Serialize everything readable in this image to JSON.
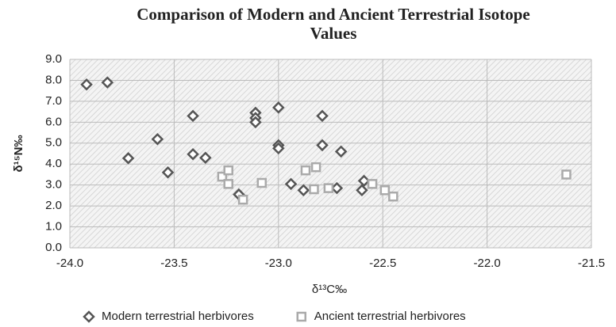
{
  "chart_data": {
    "type": "scatter",
    "title": "Comparison of Modern and Ancient Terrestrial Isotope Values",
    "x_label": "δ¹³C‰",
    "y_label": "δ¹⁵N‰",
    "xlim": [
      -24.0,
      -21.5
    ],
    "xticks": [
      {
        "value": -24.0,
        "label": "-24.0"
      },
      {
        "value": -23.5,
        "label": "-23.5"
      },
      {
        "value": -23.0,
        "label": "-23.0"
      },
      {
        "value": -22.5,
        "label": "-22.5"
      },
      {
        "value": -22.0,
        "label": "-22.0"
      },
      {
        "value": -21.5,
        "label": "-21.5"
      }
    ],
    "ylim": [
      0,
      9
    ],
    "yticks": [
      {
        "value": 0,
        "label": "0.0"
      },
      {
        "value": 1,
        "label": "1.0"
      },
      {
        "value": 2,
        "label": "2.0"
      },
      {
        "value": 3,
        "label": "3.0"
      },
      {
        "value": 4,
        "label": "4.0"
      },
      {
        "value": 5,
        "label": "5.0"
      },
      {
        "value": 6,
        "label": "6.0"
      },
      {
        "value": 7,
        "label": "7.0"
      },
      {
        "value": 8,
        "label": "8.0"
      },
      {
        "value": 9,
        "label": "9.0"
      }
    ],
    "grid": true,
    "legend": "bottom",
    "series": [
      {
        "name": "Modern terrestrial herbivores",
        "color": "#555555",
        "marker": "diamond",
        "x": [
          -23.92,
          -23.82,
          -23.72,
          -23.58,
          -23.53,
          -23.41,
          -23.41,
          -23.35,
          -23.19,
          -23.11,
          -23.11,
          -23.11,
          -23.0,
          -23.0,
          -23.0,
          -22.94,
          -22.88,
          -22.79,
          -22.79,
          -22.7,
          -22.72,
          -22.6,
          -22.59
        ],
        "values": [
          7.8,
          7.9,
          4.28,
          5.19,
          3.6,
          6.3,
          4.47,
          4.3,
          2.55,
          6.45,
          6.2,
          6.0,
          6.7,
          4.9,
          4.75,
          3.05,
          2.75,
          6.3,
          4.9,
          4.6,
          2.85,
          2.75,
          3.2
        ]
      },
      {
        "name": "Ancient terrestrial herbivores",
        "color": "#aaaaaa",
        "marker": "square",
        "x": [
          -23.27,
          -23.24,
          -23.24,
          -23.17,
          -23.08,
          -22.87,
          -22.82,
          -22.83,
          -22.76,
          -22.55,
          -22.49,
          -22.45,
          -21.62
        ],
        "values": [
          3.4,
          3.7,
          3.05,
          2.3,
          3.1,
          3.7,
          3.85,
          2.8,
          2.85,
          3.05,
          2.75,
          2.45,
          3.5
        ]
      }
    ]
  }
}
